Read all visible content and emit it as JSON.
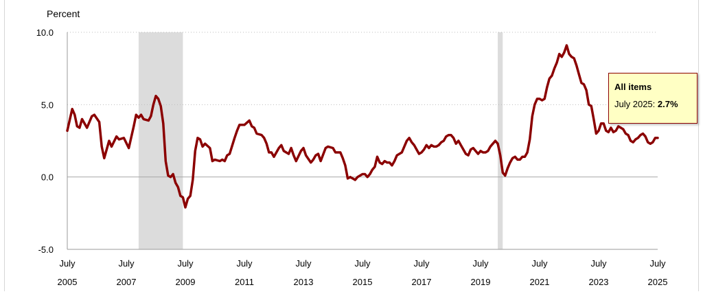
{
  "chart_data": {
    "type": "line",
    "ylabel": "Percent",
    "ylim": [
      -5.0,
      10.0
    ],
    "yticks": [
      "10.0",
      "5.0",
      "0.0",
      "-5.0"
    ],
    "xlim": [
      "2005-07",
      "2025-07"
    ],
    "xticks": [
      {
        "month": "July",
        "year": "2005"
      },
      {
        "month": "July",
        "year": "2007"
      },
      {
        "month": "July",
        "year": "2009"
      },
      {
        "month": "July",
        "year": "2011"
      },
      {
        "month": "July",
        "year": "2013"
      },
      {
        "month": "July",
        "year": "2015"
      },
      {
        "month": "July",
        "year": "2017"
      },
      {
        "month": "July",
        "year": "2019"
      },
      {
        "month": "July",
        "year": "2021"
      },
      {
        "month": "July",
        "year": "2023"
      },
      {
        "month": "July",
        "year": "2025"
      }
    ],
    "grid": true,
    "recessions": [
      {
        "start": "2007-12",
        "end": "2009-06"
      },
      {
        "start": "2020-02",
        "end": "2020-04"
      }
    ],
    "series": [
      {
        "name": "All items",
        "color": "#8b0000",
        "points": [
          [
            "2005-07",
            3.2
          ],
          [
            "2005-09",
            4.7
          ],
          [
            "2005-10",
            4.3
          ],
          [
            "2005-11",
            3.5
          ],
          [
            "2005-12",
            3.4
          ],
          [
            "2006-01",
            4.0
          ],
          [
            "2006-03",
            3.4
          ],
          [
            "2006-05",
            4.2
          ],
          [
            "2006-06",
            4.3
          ],
          [
            "2006-08",
            3.8
          ],
          [
            "2006-09",
            2.1
          ],
          [
            "2006-10",
            1.3
          ],
          [
            "2006-12",
            2.5
          ],
          [
            "2007-01",
            2.1
          ],
          [
            "2007-03",
            2.8
          ],
          [
            "2007-04",
            2.6
          ],
          [
            "2007-06",
            2.7
          ],
          [
            "2007-08",
            2.0
          ],
          [
            "2007-10",
            3.5
          ],
          [
            "2007-11",
            4.3
          ],
          [
            "2007-12",
            4.1
          ],
          [
            "2008-01",
            4.3
          ],
          [
            "2008-02",
            4.0
          ],
          [
            "2008-04",
            3.9
          ],
          [
            "2008-05",
            4.2
          ],
          [
            "2008-06",
            5.0
          ],
          [
            "2008-07",
            5.6
          ],
          [
            "2008-08",
            5.4
          ],
          [
            "2008-09",
            4.9
          ],
          [
            "2008-10",
            3.7
          ],
          [
            "2008-11",
            1.1
          ],
          [
            "2008-12",
            0.1
          ],
          [
            "2009-01",
            0.0
          ],
          [
            "2009-02",
            0.2
          ],
          [
            "2009-03",
            -0.4
          ],
          [
            "2009-04",
            -0.7
          ],
          [
            "2009-05",
            -1.3
          ],
          [
            "2009-06",
            -1.4
          ],
          [
            "2009-07",
            -2.1
          ],
          [
            "2009-08",
            -1.5
          ],
          [
            "2009-09",
            -1.3
          ],
          [
            "2009-10",
            -0.2
          ],
          [
            "2009-11",
            1.8
          ],
          [
            "2009-12",
            2.7
          ],
          [
            "2010-01",
            2.6
          ],
          [
            "2010-02",
            2.1
          ],
          [
            "2010-03",
            2.3
          ],
          [
            "2010-05",
            2.0
          ],
          [
            "2010-06",
            1.1
          ],
          [
            "2010-07",
            1.2
          ],
          [
            "2010-09",
            1.1
          ],
          [
            "2010-10",
            1.2
          ],
          [
            "2010-11",
            1.1
          ],
          [
            "2010-12",
            1.5
          ],
          [
            "2011-01",
            1.6
          ],
          [
            "2011-03",
            2.7
          ],
          [
            "2011-04",
            3.2
          ],
          [
            "2011-05",
            3.6
          ],
          [
            "2011-07",
            3.6
          ],
          [
            "2011-09",
            3.9
          ],
          [
            "2011-10",
            3.5
          ],
          [
            "2011-11",
            3.4
          ],
          [
            "2011-12",
            3.0
          ],
          [
            "2012-02",
            2.9
          ],
          [
            "2012-03",
            2.7
          ],
          [
            "2012-04",
            2.3
          ],
          [
            "2012-05",
            1.7
          ],
          [
            "2012-06",
            1.7
          ],
          [
            "2012-07",
            1.4
          ],
          [
            "2012-09",
            2.0
          ],
          [
            "2012-10",
            2.2
          ],
          [
            "2012-11",
            1.8
          ],
          [
            "2012-12",
            1.7
          ],
          [
            "2013-01",
            1.6
          ],
          [
            "2013-02",
            2.0
          ],
          [
            "2013-03",
            1.5
          ],
          [
            "2013-04",
            1.1
          ],
          [
            "2013-06",
            1.8
          ],
          [
            "2013-07",
            2.0
          ],
          [
            "2013-08",
            1.5
          ],
          [
            "2013-10",
            1.0
          ],
          [
            "2013-11",
            1.2
          ],
          [
            "2013-12",
            1.5
          ],
          [
            "2014-01",
            1.6
          ],
          [
            "2014-02",
            1.1
          ],
          [
            "2014-04",
            2.0
          ],
          [
            "2014-05",
            2.1
          ],
          [
            "2014-07",
            2.0
          ],
          [
            "2014-08",
            1.7
          ],
          [
            "2014-09",
            1.7
          ],
          [
            "2014-10",
            1.7
          ],
          [
            "2014-11",
            1.3
          ],
          [
            "2014-12",
            0.8
          ],
          [
            "2015-01",
            -0.1
          ],
          [
            "2015-02",
            0.0
          ],
          [
            "2015-03",
            -0.1
          ],
          [
            "2015-04",
            -0.2
          ],
          [
            "2015-05",
            0.0
          ],
          [
            "2015-06",
            0.1
          ],
          [
            "2015-07",
            0.2
          ],
          [
            "2015-08",
            0.2
          ],
          [
            "2015-09",
            0.0
          ],
          [
            "2015-10",
            0.2
          ],
          [
            "2015-11",
            0.5
          ],
          [
            "2015-12",
            0.7
          ],
          [
            "2016-01",
            1.4
          ],
          [
            "2016-02",
            1.0
          ],
          [
            "2016-03",
            0.9
          ],
          [
            "2016-04",
            1.1
          ],
          [
            "2016-05",
            1.0
          ],
          [
            "2016-06",
            1.0
          ],
          [
            "2016-07",
            0.8
          ],
          [
            "2016-08",
            1.1
          ],
          [
            "2016-09",
            1.5
          ],
          [
            "2016-10",
            1.6
          ],
          [
            "2016-11",
            1.7
          ],
          [
            "2016-12",
            2.1
          ],
          [
            "2017-01",
            2.5
          ],
          [
            "2017-02",
            2.7
          ],
          [
            "2017-03",
            2.4
          ],
          [
            "2017-04",
            2.2
          ],
          [
            "2017-05",
            1.9
          ],
          [
            "2017-06",
            1.6
          ],
          [
            "2017-07",
            1.7
          ],
          [
            "2017-08",
            1.9
          ],
          [
            "2017-09",
            2.2
          ],
          [
            "2017-10",
            2.0
          ],
          [
            "2017-11",
            2.2
          ],
          [
            "2017-12",
            2.1
          ],
          [
            "2018-01",
            2.1
          ],
          [
            "2018-02",
            2.2
          ],
          [
            "2018-03",
            2.4
          ],
          [
            "2018-04",
            2.5
          ],
          [
            "2018-05",
            2.8
          ],
          [
            "2018-06",
            2.9
          ],
          [
            "2018-07",
            2.9
          ],
          [
            "2018-08",
            2.7
          ],
          [
            "2018-09",
            2.3
          ],
          [
            "2018-10",
            2.5
          ],
          [
            "2018-11",
            2.2
          ],
          [
            "2018-12",
            1.9
          ],
          [
            "2019-01",
            1.6
          ],
          [
            "2019-02",
            1.5
          ],
          [
            "2019-03",
            1.9
          ],
          [
            "2019-04",
            2.0
          ],
          [
            "2019-05",
            1.8
          ],
          [
            "2019-06",
            1.6
          ],
          [
            "2019-07",
            1.8
          ],
          [
            "2019-08",
            1.7
          ],
          [
            "2019-09",
            1.7
          ],
          [
            "2019-10",
            1.8
          ],
          [
            "2019-11",
            2.1
          ],
          [
            "2019-12",
            2.3
          ],
          [
            "2020-01",
            2.5
          ],
          [
            "2020-02",
            2.3
          ],
          [
            "2020-03",
            1.5
          ],
          [
            "2020-04",
            0.3
          ],
          [
            "2020-05",
            0.1
          ],
          [
            "2020-06",
            0.6
          ],
          [
            "2020-07",
            1.0
          ],
          [
            "2020-08",
            1.3
          ],
          [
            "2020-09",
            1.4
          ],
          [
            "2020-10",
            1.2
          ],
          [
            "2020-11",
            1.2
          ],
          [
            "2020-12",
            1.4
          ],
          [
            "2021-01",
            1.4
          ],
          [
            "2021-02",
            1.7
          ],
          [
            "2021-03",
            2.6
          ],
          [
            "2021-04",
            4.2
          ],
          [
            "2021-05",
            5.0
          ],
          [
            "2021-06",
            5.4
          ],
          [
            "2021-07",
            5.4
          ],
          [
            "2021-08",
            5.3
          ],
          [
            "2021-09",
            5.4
          ],
          [
            "2021-10",
            6.2
          ],
          [
            "2021-11",
            6.8
          ],
          [
            "2021-12",
            7.0
          ],
          [
            "2022-01",
            7.5
          ],
          [
            "2022-02",
            7.9
          ],
          [
            "2022-03",
            8.5
          ],
          [
            "2022-04",
            8.3
          ],
          [
            "2022-05",
            8.6
          ],
          [
            "2022-06",
            9.1
          ],
          [
            "2022-07",
            8.5
          ],
          [
            "2022-08",
            8.3
          ],
          [
            "2022-09",
            8.2
          ],
          [
            "2022-10",
            7.7
          ],
          [
            "2022-11",
            7.1
          ],
          [
            "2022-12",
            6.5
          ],
          [
            "2023-01",
            6.4
          ],
          [
            "2023-02",
            6.0
          ],
          [
            "2023-03",
            5.0
          ],
          [
            "2023-04",
            4.9
          ],
          [
            "2023-05",
            4.0
          ],
          [
            "2023-06",
            3.0
          ],
          [
            "2023-07",
            3.2
          ],
          [
            "2023-08",
            3.7
          ],
          [
            "2023-09",
            3.7
          ],
          [
            "2023-10",
            3.2
          ],
          [
            "2023-11",
            3.1
          ],
          [
            "2023-12",
            3.4
          ],
          [
            "2024-01",
            3.1
          ],
          [
            "2024-02",
            3.2
          ],
          [
            "2024-03",
            3.5
          ],
          [
            "2024-04",
            3.4
          ],
          [
            "2024-05",
            3.3
          ],
          [
            "2024-06",
            3.0
          ],
          [
            "2024-07",
            2.9
          ],
          [
            "2024-08",
            2.5
          ],
          [
            "2024-09",
            2.4
          ],
          [
            "2024-10",
            2.6
          ],
          [
            "2024-11",
            2.7
          ],
          [
            "2024-12",
            2.9
          ],
          [
            "2025-01",
            3.0
          ],
          [
            "2025-02",
            2.8
          ],
          [
            "2025-03",
            2.4
          ],
          [
            "2025-04",
            2.3
          ],
          [
            "2025-05",
            2.4
          ],
          [
            "2025-06",
            2.7
          ],
          [
            "2025-07",
            2.7
          ]
        ]
      }
    ],
    "tooltip": {
      "title": "All items",
      "label": "July 2025: ",
      "value": "2.7%"
    }
  }
}
